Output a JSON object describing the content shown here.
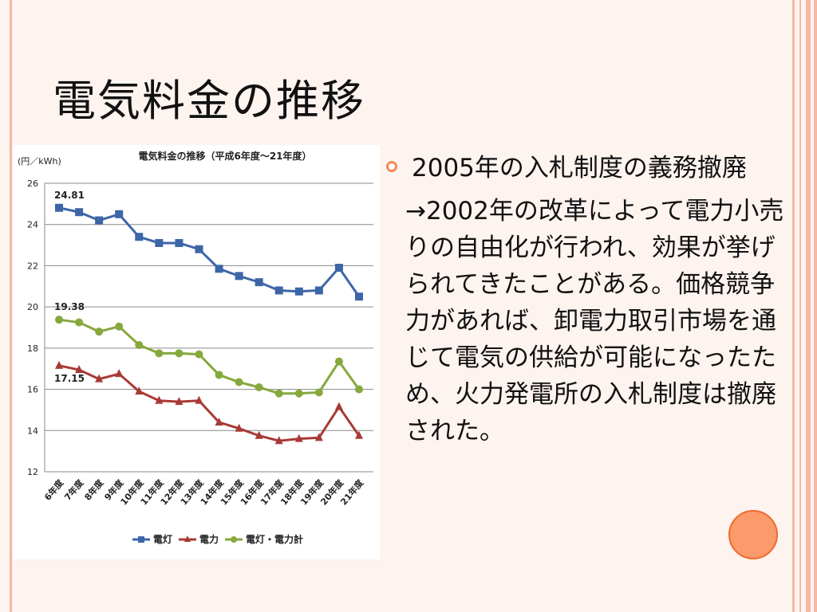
{
  "slide": {
    "title": "電気料金の推移",
    "bullet_text": "2005年の入札制度の義務撤廃",
    "paragraph": "→2002年の改革によって電力小売りの自由化が行われ、効果が挙げられてきたことがある。価格競争力があれば、卸電力取引市場を通じて電気の供給が可能になったため、火力発電所の入札制度は撤廃された。"
  },
  "colors": {
    "accent": "#f28a55",
    "dengtou": "#3d66a8",
    "denryoku": "#a83a36",
    "combined": "#86a83d"
  },
  "chart_data": {
    "type": "line",
    "title": "電気料金の推移（平成6年度～21年度）",
    "ylabel": "(円／kWh)",
    "ylim": [
      12,
      26
    ],
    "yticks": [
      "26",
      "24",
      "22",
      "20",
      "18",
      "16",
      "14",
      "12"
    ],
    "grid": true,
    "legend_position": "bottom",
    "categories": [
      "6年度",
      "7年度",
      "8年度",
      "9年度",
      "10年度",
      "11年度",
      "12年度",
      "13年度",
      "14年度",
      "15年度",
      "16年度",
      "17年度",
      "18年度",
      "19年度",
      "20年度",
      "21年度"
    ],
    "series": [
      {
        "name": "電灯",
        "marker": "square",
        "color": "#3d66a8",
        "values": [
          24.81,
          24.6,
          24.2,
          24.5,
          23.4,
          23.1,
          23.1,
          22.8,
          21.85,
          21.5,
          21.2,
          20.8,
          20.75,
          20.8,
          21.9,
          20.5
        ]
      },
      {
        "name": "電力",
        "marker": "triangle",
        "color": "#a83a36",
        "values": [
          17.15,
          16.95,
          16.5,
          16.75,
          15.9,
          15.45,
          15.4,
          15.45,
          14.4,
          14.1,
          13.75,
          13.5,
          13.6,
          13.65,
          15.15,
          13.75
        ]
      },
      {
        "name": "電灯・電力計",
        "marker": "circle",
        "color": "#86a83d",
        "values": [
          19.38,
          19.25,
          18.8,
          19.05,
          18.15,
          17.75,
          17.75,
          17.7,
          16.7,
          16.35,
          16.1,
          15.8,
          15.8,
          15.85,
          17.35,
          16.0
        ]
      }
    ],
    "data_labels": [
      {
        "text": "24.81",
        "series": 0,
        "index": 0
      },
      {
        "text": "19.38",
        "series": 2,
        "index": 0
      },
      {
        "text": "17.15",
        "series": 1,
        "index": 0
      }
    ]
  }
}
